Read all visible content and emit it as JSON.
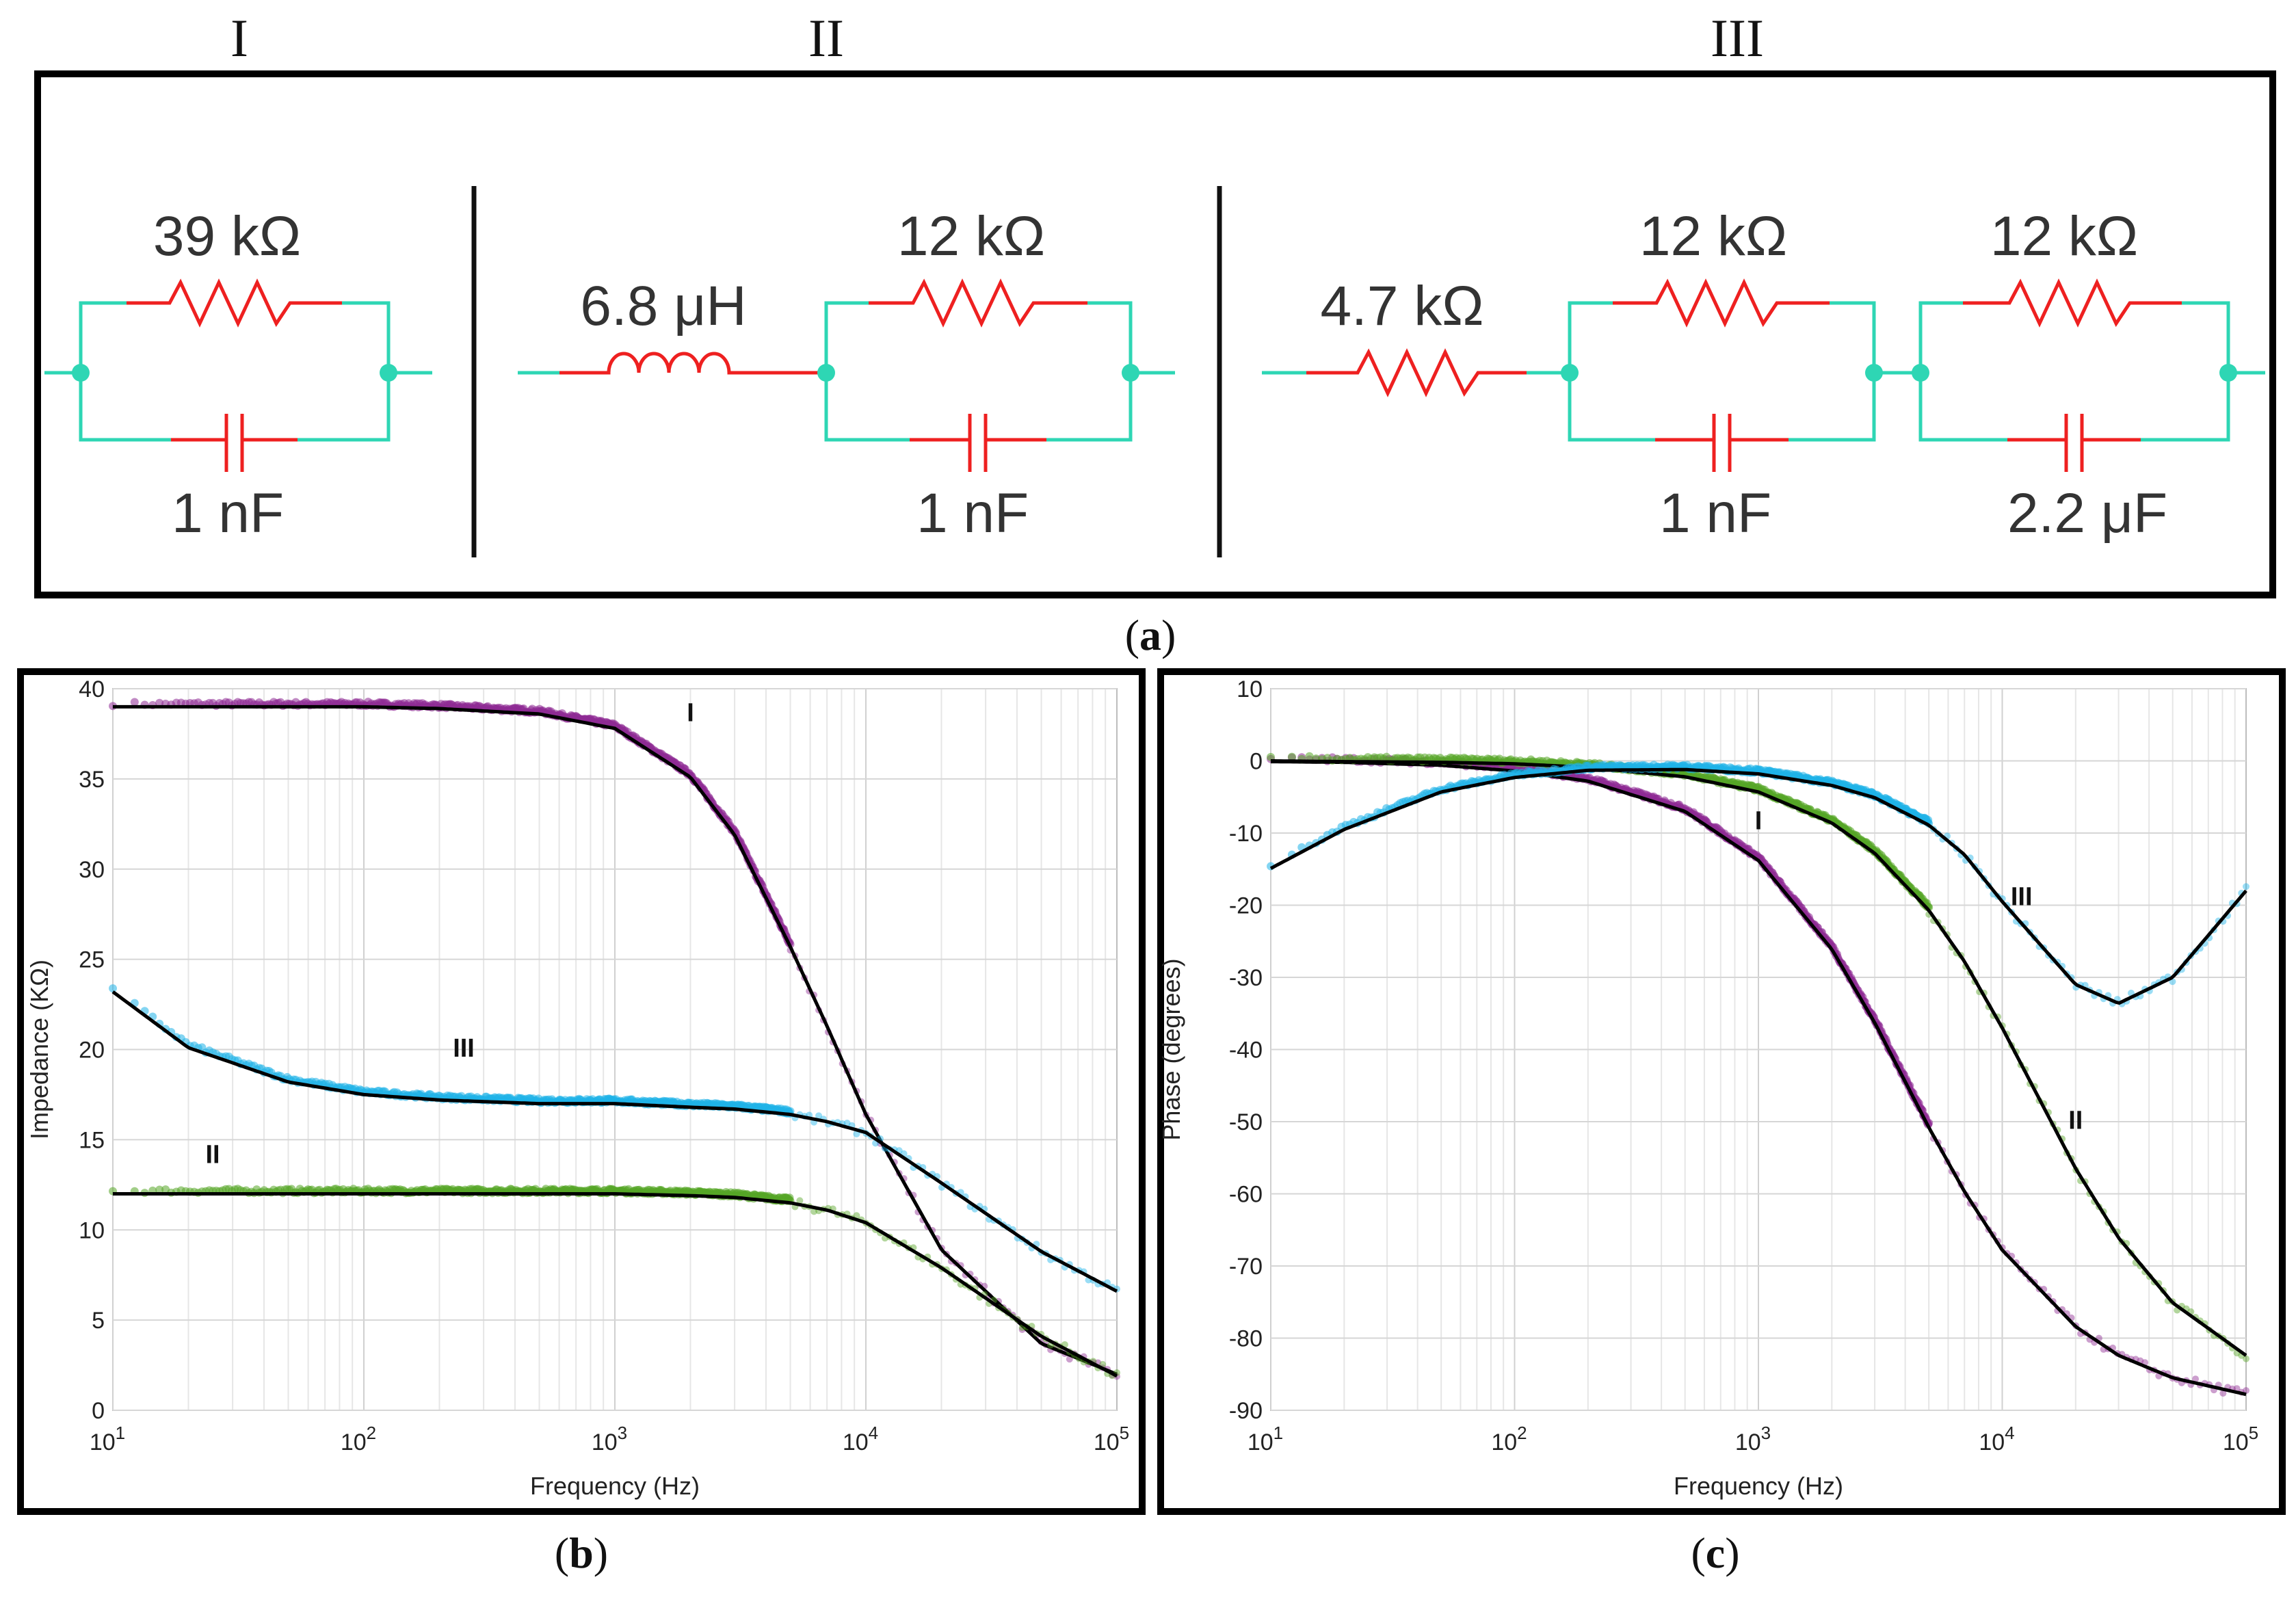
{
  "colors": {
    "wire": "#2ed6b4",
    "component": "#ee2020",
    "node": "#2ed6b4",
    "series_I": "#8e2a93",
    "series_II": "#56a526",
    "series_III": "#1fb3e8",
    "fit": "#000000"
  },
  "circuits": {
    "section_labels": [
      "I",
      "II",
      "III"
    ],
    "I": {
      "R": "39 kΩ",
      "C": "1 nF"
    },
    "II": {
      "L": "6.8 μH",
      "R": "12 kΩ",
      "C": "1 nF"
    },
    "III": {
      "Rs": "4.7 kΩ",
      "R1": "12 kΩ",
      "C1": "1 nF",
      "R2": "12 kΩ",
      "C2": "2.2 μF"
    }
  },
  "panel_labels": {
    "a": {
      "open": "(",
      "letter": "a",
      "close": ")"
    },
    "b": {
      "open": "(",
      "letter": "b",
      "close": ")"
    },
    "c": {
      "open": "(",
      "letter": "c",
      "close": ")"
    }
  },
  "chart_data": [
    {
      "type": "line",
      "title": "",
      "xlabel": "Frequency (Hz)",
      "ylabel": "Impedance (KΩ)",
      "xscale": "log",
      "xlim": [
        10,
        100000
      ],
      "ylim": [
        0,
        40
      ],
      "xticks": [
        {
          "base": "10",
          "exp": "1"
        },
        {
          "base": "10",
          "exp": "2"
        },
        {
          "base": "10",
          "exp": "3"
        },
        {
          "base": "10",
          "exp": "4"
        },
        {
          "base": "10",
          "exp": "5"
        }
      ],
      "yticks": [
        "0",
        "5",
        "10",
        "15",
        "20",
        "25",
        "30",
        "35",
        "40"
      ],
      "grid": true,
      "x": [
        10,
        20,
        50,
        100,
        200,
        500,
        1000,
        2000,
        3000,
        5000,
        7000,
        10000,
        20000,
        50000,
        100000
      ],
      "series": [
        {
          "name": "I",
          "label": "I",
          "values": [
            39.0,
            39.0,
            39.0,
            39.0,
            38.9,
            38.6,
            37.8,
            35.1,
            31.9,
            25.7,
            21.3,
            16.4,
            8.9,
            3.7,
            2.0
          ]
        },
        {
          "name": "II",
          "label": "II",
          "values": [
            12.0,
            12.0,
            12.0,
            12.0,
            12.0,
            12.0,
            12.0,
            11.9,
            11.8,
            11.5,
            11.1,
            10.4,
            7.9,
            4.1,
            1.9
          ]
        },
        {
          "name": "III",
          "label": "III",
          "values": [
            23.2,
            20.1,
            18.2,
            17.5,
            17.2,
            17.0,
            17.0,
            16.8,
            16.7,
            16.4,
            16.0,
            15.4,
            12.6,
            8.8,
            6.6
          ]
        }
      ],
      "annotations": [
        {
          "text": "I",
          "x": 2000,
          "y": 38.2
        },
        {
          "text": "III",
          "x": 250,
          "y": 19.6
        },
        {
          "text": "II",
          "x": 25,
          "y": 13.7
        }
      ],
      "data_end_hz": 5000
    },
    {
      "type": "line",
      "title": "",
      "xlabel": "Frequency (Hz)",
      "ylabel": "Phase (degrees)",
      "xscale": "log",
      "xlim": [
        10,
        100000
      ],
      "ylim": [
        -90,
        10
      ],
      "xticks": [
        {
          "base": "10",
          "exp": "1"
        },
        {
          "base": "10",
          "exp": "2"
        },
        {
          "base": "10",
          "exp": "3"
        },
        {
          "base": "10",
          "exp": "4"
        },
        {
          "base": "10",
          "exp": "5"
        }
      ],
      "yticks": [
        "-90",
        "-80",
        "-70",
        "-60",
        "-50",
        "-40",
        "-30",
        "-20",
        "-10",
        "0",
        "10"
      ],
      "grid": true,
      "x": [
        10,
        20,
        50,
        100,
        200,
        500,
        1000,
        2000,
        3000,
        5000,
        7000,
        10000,
        20000,
        30000,
        50000,
        100000
      ],
      "series": [
        {
          "name": "I",
          "label": "I",
          "values": [
            -0.1,
            -0.2,
            -0.6,
            -1.4,
            -2.8,
            -7.0,
            -13.8,
            -26.1,
            -36.3,
            -50.8,
            -59.7,
            -67.8,
            -78.4,
            -82.4,
            -85.5,
            -87.8
          ]
        },
        {
          "name": "II",
          "label": "II",
          "values": [
            0.0,
            -0.1,
            -0.2,
            -0.4,
            -0.9,
            -2.2,
            -4.3,
            -8.6,
            -12.8,
            -20.7,
            -27.8,
            -37.0,
            -56.5,
            -66.1,
            -75.1,
            -82.4
          ]
        },
        {
          "name": "III",
          "label": "III",
          "values": [
            -14.9,
            -9.5,
            -4.3,
            -2.3,
            -1.3,
            -1.2,
            -1.8,
            -3.4,
            -5.1,
            -8.9,
            -13.0,
            -19.5,
            -31.0,
            -33.6,
            -30.0,
            -18.0
          ]
        }
      ],
      "annotations": [
        {
          "text": "I",
          "x": 1000,
          "y": -9.5
        },
        {
          "text": "III",
          "x": 12000,
          "y": -20.0
        },
        {
          "text": "II",
          "x": 20000,
          "y": -51.0
        }
      ],
      "data_end_hz": 5000
    }
  ]
}
